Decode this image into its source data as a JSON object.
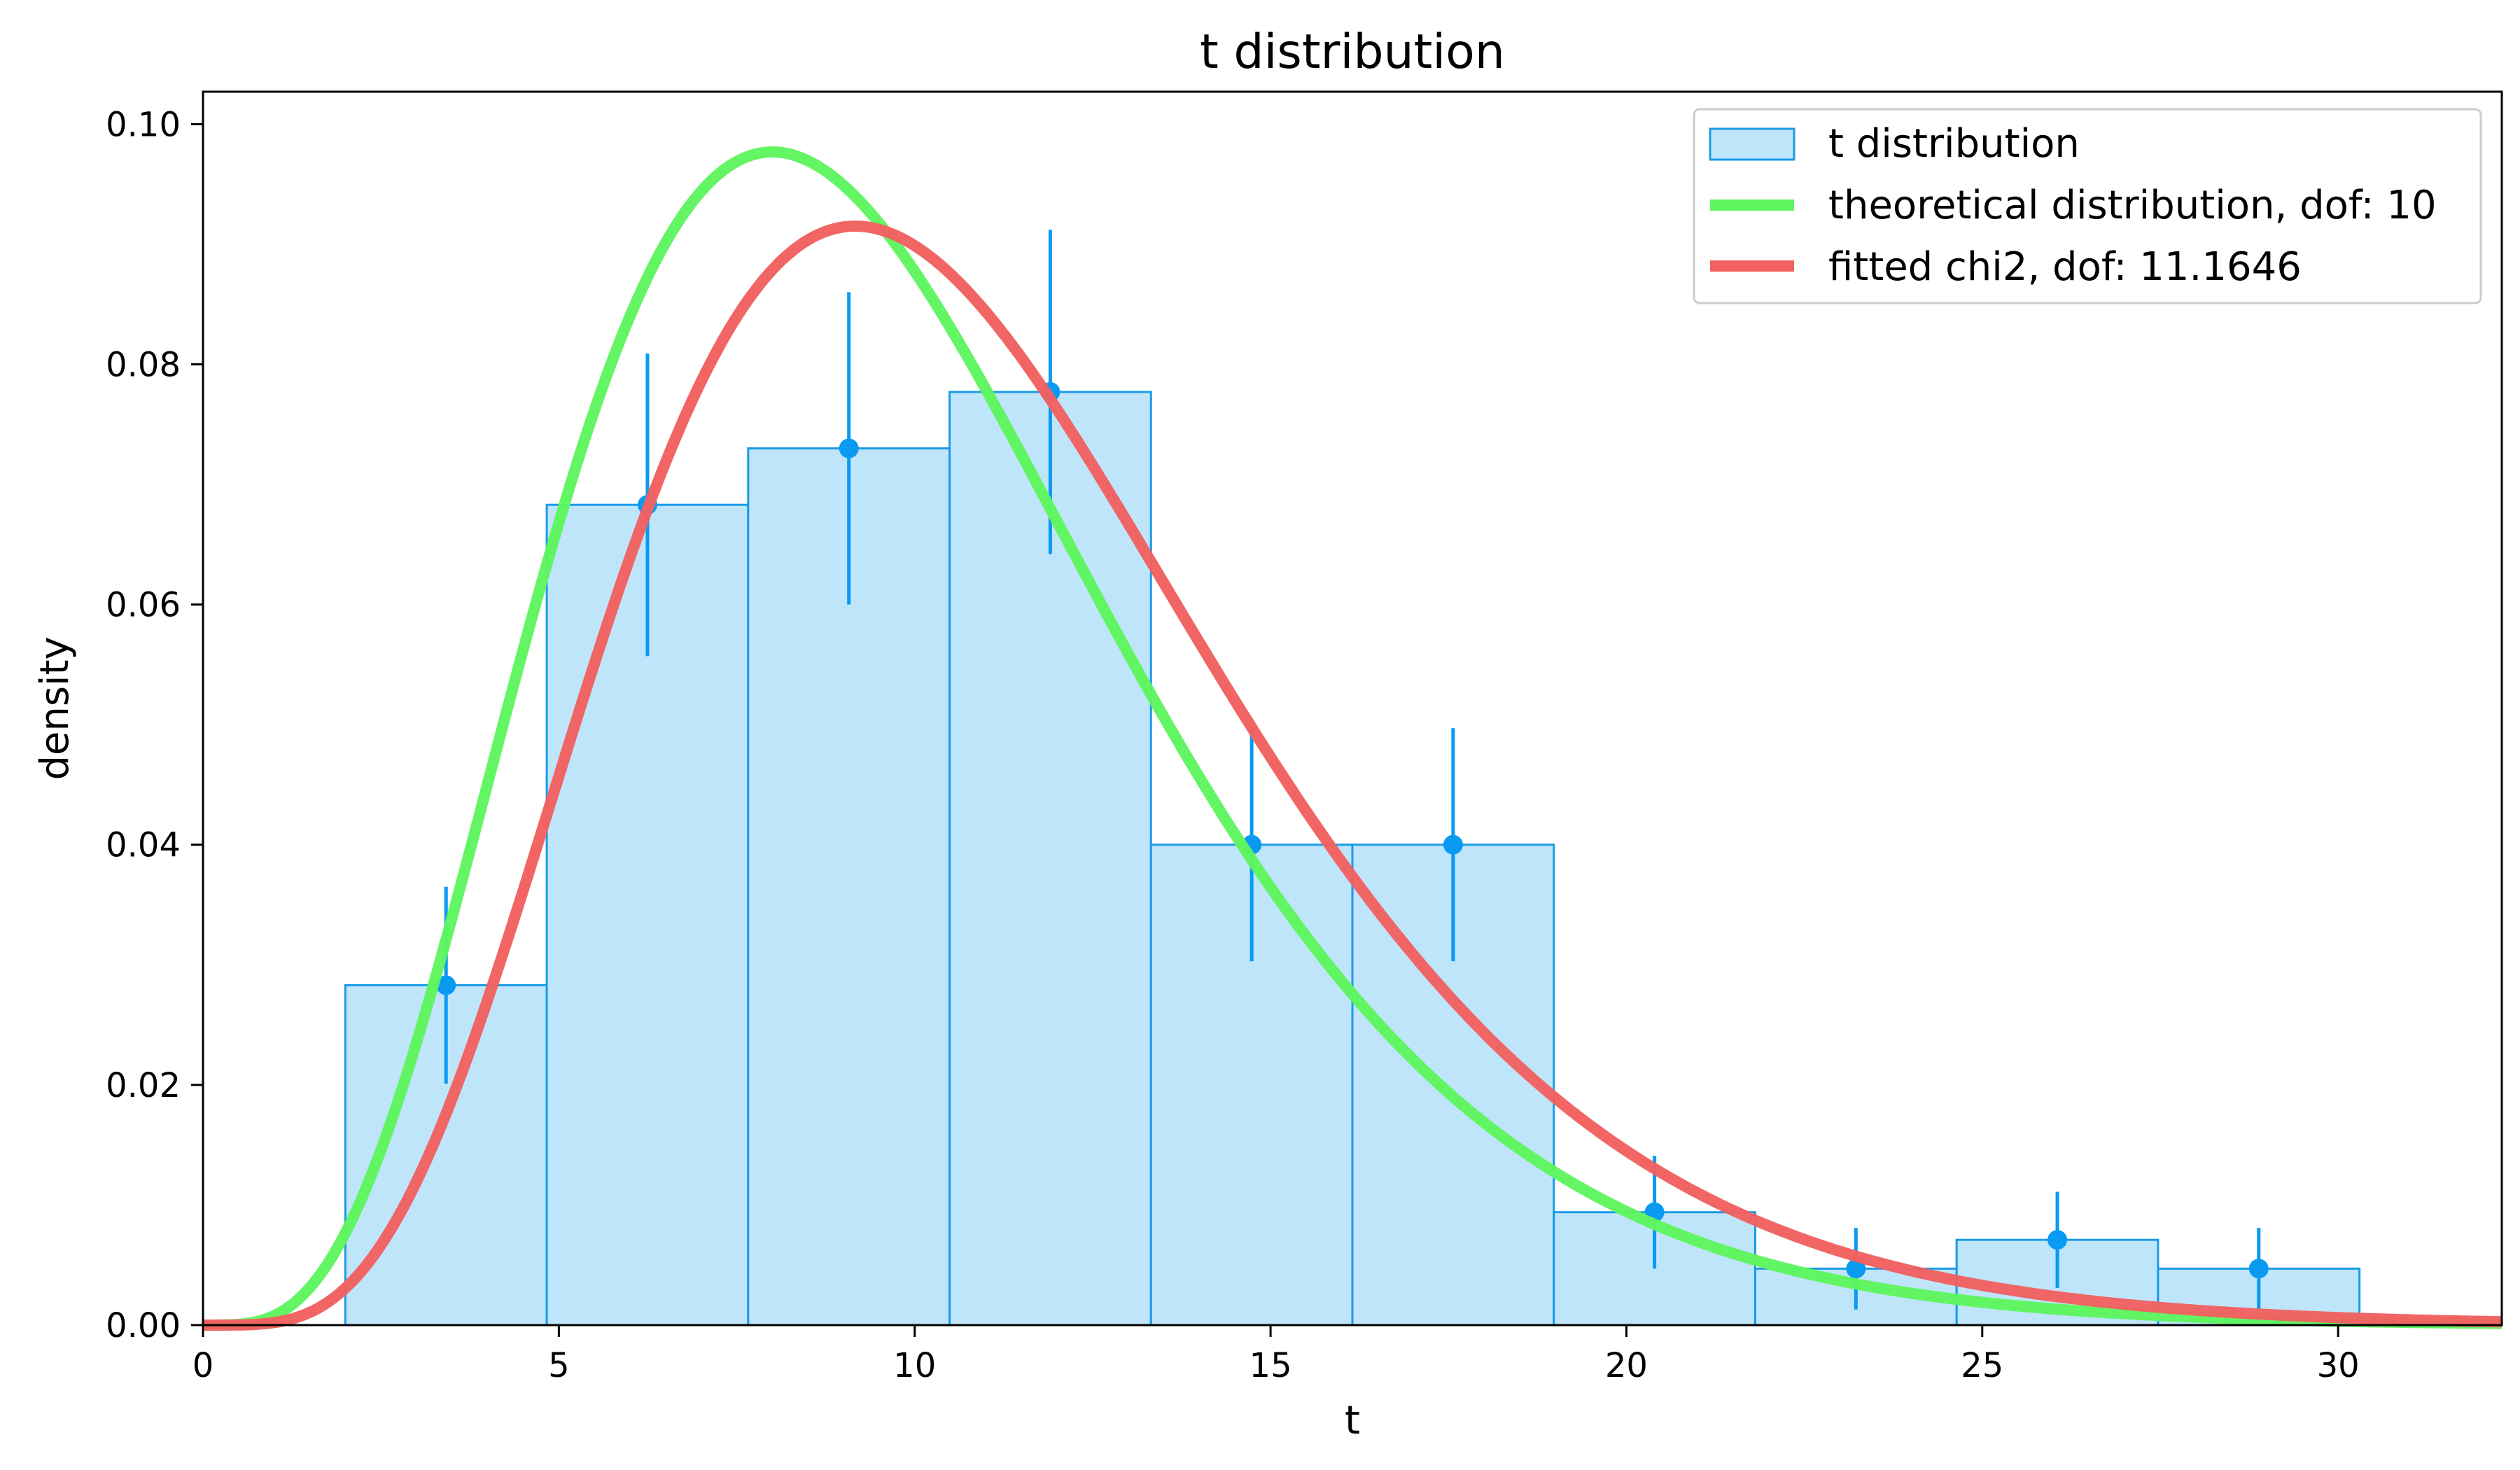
{
  "chart_data": {
    "type": "bar",
    "title": "t distribution",
    "xlabel": "t",
    "ylabel": "density",
    "xlim": [
      0,
      32.3
    ],
    "ylim": [
      0,
      0.1027
    ],
    "xticks": [
      0,
      5,
      10,
      15,
      20,
      25,
      30
    ],
    "xtick_labels": [
      "0",
      "5",
      "10",
      "15",
      "20",
      "25",
      "30"
    ],
    "yticks": [
      0,
      0.02,
      0.04,
      0.06,
      0.08,
      0.1
    ],
    "ytick_labels": [
      "0.00",
      "0.02",
      "0.04",
      "0.06",
      "0.08",
      "0.10"
    ],
    "grid": false,
    "legend_position": "top-right",
    "histogram": {
      "name": "t distribution",
      "fill": "#bfe5fb",
      "edge": "#1a9be6",
      "bin_edges": [
        2.0,
        4.83,
        7.66,
        10.49,
        13.32,
        16.15,
        18.98,
        21.81,
        24.64,
        27.47,
        30.3
      ],
      "densities": [
        0.0283,
        0.0683,
        0.073,
        0.0777,
        0.04,
        0.04,
        0.0094,
        0.0047,
        0.0071,
        0.0047
      ],
      "errors": [
        0.0082,
        0.0126,
        0.013,
        0.0135,
        0.0097,
        0.0097,
        0.0047,
        0.0034,
        0.004,
        0.0034
      ],
      "marker_color": "#0a9af2"
    },
    "series": [
      {
        "name": "theoretical distribution, dof: 10",
        "type": "line",
        "dist": "chi2",
        "dof": 10,
        "color": "#5ef55e"
      },
      {
        "name": "fitted chi2, dof: 11.1646",
        "type": "line",
        "dist": "chi2",
        "dof": 11.1646,
        "color": "#f26060"
      }
    ]
  }
}
